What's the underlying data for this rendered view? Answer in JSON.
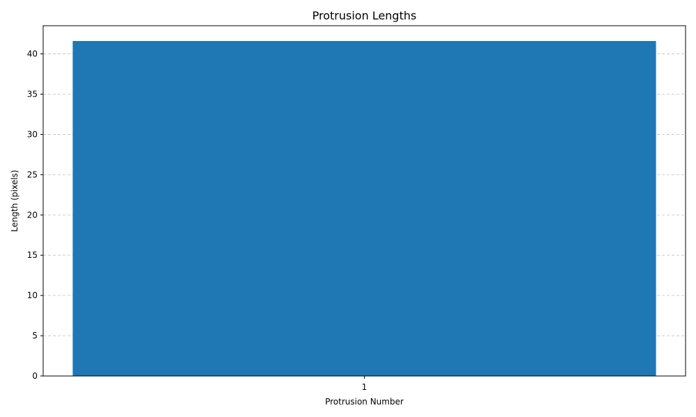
{
  "chart_data": {
    "type": "bar",
    "title": "Protrusion Lengths",
    "xlabel": "Protrusion Number",
    "ylabel": "Length (pixels)",
    "categories": [
      "1"
    ],
    "values": [
      41.6
    ],
    "ylim": [
      0,
      43.5
    ],
    "yticks": [
      0,
      5,
      10,
      15,
      20,
      25,
      30,
      35,
      40
    ],
    "grid": "y-dashed",
    "bar_color": "#1f77b4"
  }
}
